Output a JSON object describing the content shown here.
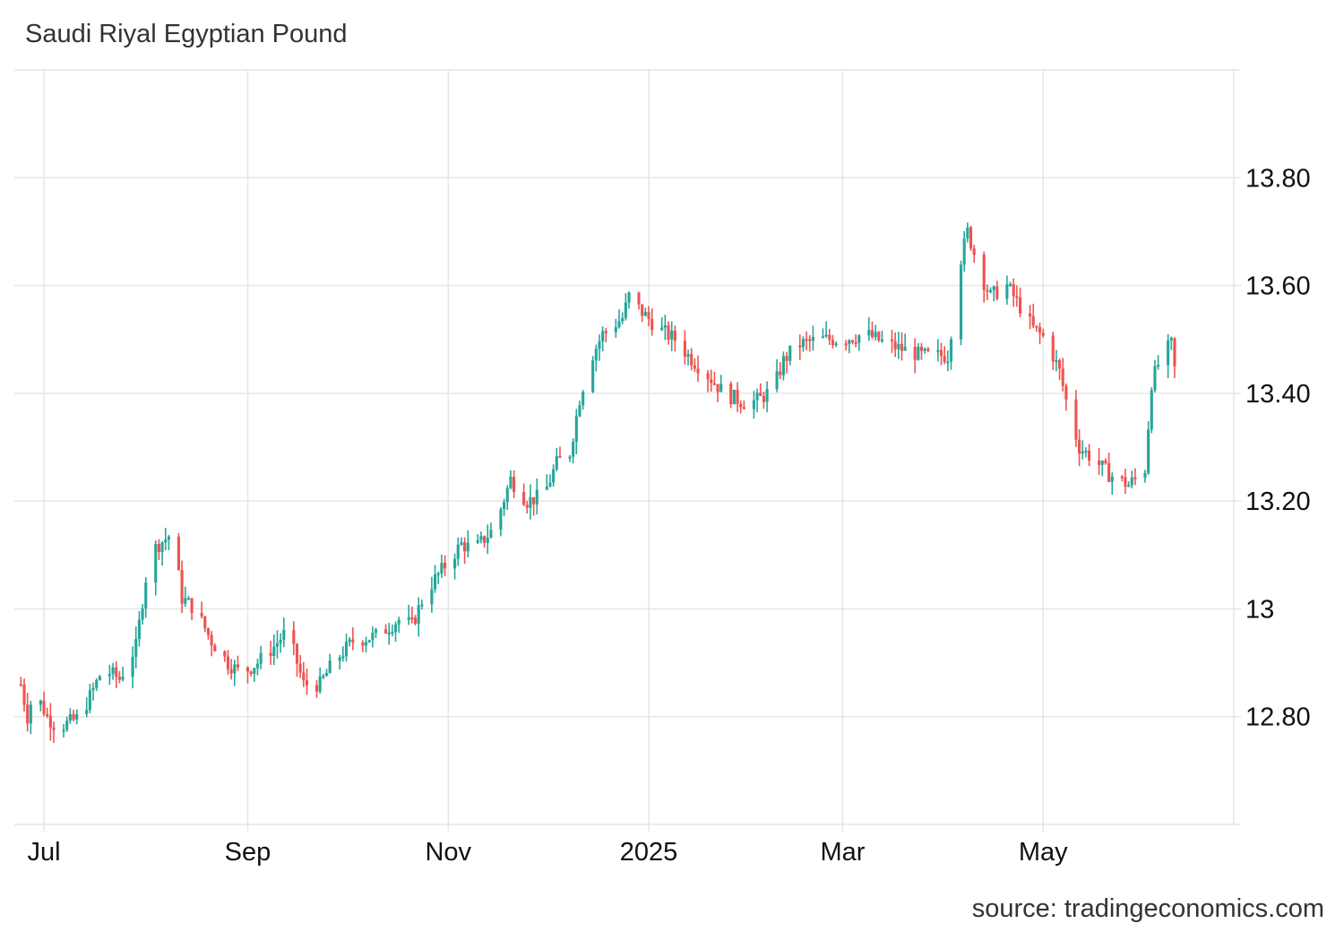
{
  "chart_data": {
    "type": "candlestick",
    "title": "Saudi Riyal Egyptian Pound",
    "source": "source: tradingeconomics.com",
    "y_ticks": [
      {
        "value": 12.8,
        "label": "12.80"
      },
      {
        "value": 13.0,
        "label": "13"
      },
      {
        "value": 13.2,
        "label": "13.20"
      },
      {
        "value": 13.4,
        "label": "13.40"
      },
      {
        "value": 13.6,
        "label": "13.60"
      },
      {
        "value": 13.8,
        "label": "13.80"
      }
    ],
    "x_ticks": [
      {
        "date": "2024-07-01",
        "label": "Jul"
      },
      {
        "date": "2024-09-01",
        "label": "Sep"
      },
      {
        "date": "2024-11-01",
        "label": "Nov"
      },
      {
        "date": "2025-01-01",
        "label": "2025"
      },
      {
        "date": "2025-03-01",
        "label": "Mar"
      },
      {
        "date": "2025-05-01",
        "label": "May"
      }
    ],
    "ylim": [
      12.6,
      14.0
    ],
    "xlim": [
      "2024-06-22",
      "2025-06-28"
    ],
    "up_color": "#26a69a",
    "down_color": "#ef5350",
    "grid": true,
    "axis_position": "right",
    "anchors": [
      [
        "2024-06-24",
        12.86
      ],
      [
        "2024-06-26",
        12.8
      ],
      [
        "2024-06-28",
        12.85
      ],
      [
        "2024-07-02",
        12.8
      ],
      [
        "2024-07-05",
        12.78
      ],
      [
        "2024-07-09",
        12.79
      ],
      [
        "2024-07-12",
        12.8
      ],
      [
        "2024-07-16",
        12.85
      ],
      [
        "2024-07-19",
        12.89
      ],
      [
        "2024-07-24",
        12.87
      ],
      [
        "2024-07-29",
        12.93
      ],
      [
        "2024-08-02",
        13.1
      ],
      [
        "2024-08-05",
        13.12
      ],
      [
        "2024-08-09",
        13.14
      ],
      [
        "2024-08-12",
        13.02
      ],
      [
        "2024-08-16",
        13.0
      ],
      [
        "2024-08-21",
        12.94
      ],
      [
        "2024-08-26",
        12.9
      ],
      [
        "2024-08-30",
        12.88
      ],
      [
        "2024-09-04",
        12.9
      ],
      [
        "2024-09-09",
        12.93
      ],
      [
        "2024-09-13",
        12.96
      ],
      [
        "2024-09-18",
        12.86
      ],
      [
        "2024-09-23",
        12.86
      ],
      [
        "2024-09-27",
        12.9
      ],
      [
        "2024-10-03",
        12.94
      ],
      [
        "2024-10-10",
        12.95
      ],
      [
        "2024-10-17",
        12.98
      ],
      [
        "2024-10-21",
        12.97
      ],
      [
        "2024-10-25",
        13.03
      ],
      [
        "2024-10-31",
        13.08
      ],
      [
        "2024-11-05",
        13.12
      ],
      [
        "2024-11-09",
        13.11
      ],
      [
        "2024-11-15",
        13.15
      ],
      [
        "2024-11-20",
        13.24
      ],
      [
        "2024-11-25",
        13.2
      ],
      [
        "2024-11-30",
        13.21
      ],
      [
        "2024-12-04",
        13.27
      ],
      [
        "2024-12-08",
        13.29
      ],
      [
        "2024-12-11",
        13.39
      ],
      [
        "2024-12-14",
        13.46
      ],
      [
        "2024-12-18",
        13.51
      ],
      [
        "2024-12-24",
        13.54
      ],
      [
        "2024-12-26",
        13.58
      ],
      [
        "2024-12-30",
        13.55
      ],
      [
        "2025-01-04",
        13.52
      ],
      [
        "2025-01-09",
        13.5
      ],
      [
        "2025-01-13",
        13.47
      ],
      [
        "2025-01-18",
        13.44
      ],
      [
        "2025-01-24",
        13.4
      ],
      [
        "2025-01-31",
        13.38
      ],
      [
        "2025-02-04",
        13.39
      ],
      [
        "2025-02-08",
        13.41
      ],
      [
        "2025-02-11",
        13.46
      ],
      [
        "2025-02-15",
        13.49
      ],
      [
        "2025-02-22",
        13.5
      ],
      [
        "2025-03-01",
        13.5
      ],
      [
        "2025-03-08",
        13.51
      ],
      [
        "2025-03-15",
        13.49
      ],
      [
        "2025-03-20",
        13.48
      ],
      [
        "2025-03-25",
        13.47
      ],
      [
        "2025-04-02",
        13.47
      ],
      [
        "2025-04-06",
        13.65
      ],
      [
        "2025-04-08",
        13.7
      ],
      [
        "2025-04-12",
        13.62
      ],
      [
        "2025-04-15",
        13.58
      ],
      [
        "2025-04-20",
        13.6
      ],
      [
        "2025-04-23",
        13.57
      ],
      [
        "2025-04-28",
        13.52
      ],
      [
        "2025-05-02",
        13.5
      ],
      [
        "2025-05-06",
        13.44
      ],
      [
        "2025-05-09",
        13.36
      ],
      [
        "2025-05-12",
        13.3
      ],
      [
        "2025-05-16",
        13.28
      ],
      [
        "2025-05-21",
        13.25
      ],
      [
        "2025-05-27",
        13.23
      ],
      [
        "2025-06-01",
        13.26
      ],
      [
        "2025-06-03",
        13.42
      ],
      [
        "2025-06-06",
        13.47
      ],
      [
        "2025-06-09",
        13.49
      ],
      [
        "2025-06-11",
        13.4
      ]
    ]
  }
}
